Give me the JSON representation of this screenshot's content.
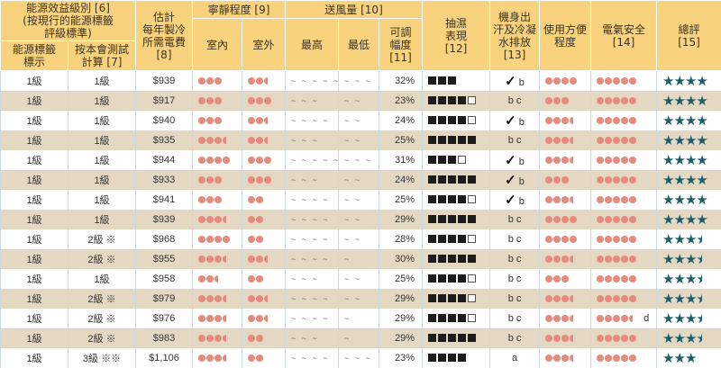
{
  "header": {
    "grade_group": "能源效益級別 [6]\n(按現行的能源標籤\n評級標準)",
    "label_grade": "能源標籤\n標示",
    "test_grade": "按本會測試\n計算 [7]",
    "cost": "估計\n每年製冷\n所需電費\n[8]",
    "quiet": "寧靜程度 [9]",
    "indoor": "室內",
    "outdoor": "室外",
    "airflow": "送風量 [10]",
    "max": "最高",
    "min": "最低",
    "range": "可調\n幅度\n[11]",
    "dehum": "抽濕\n表現\n[12]",
    "sweat": "機身出\n汗及冷凝\n水排放\n[13]",
    "ease": "使用方便\n程度",
    "elec": "電氣安全\n[14]",
    "overall": "總評\n[15]"
  },
  "colors": {
    "header": "#f8d27c",
    "alt_row": "#e4d8c3",
    "dot": "#e58a7c",
    "star": "#1e5e69"
  },
  "rows": [
    {
      "label": "1級",
      "test": "1級",
      "cost": "$939",
      "indoor": 3,
      "outdoor": 2.5,
      "max": 5,
      "min": 3,
      "range": "32%",
      "dehum": [
        3,
        3
      ],
      "check": true,
      "sweat": "b",
      "ease": 4,
      "elec": 5,
      "elec_note": "",
      "stars": 4
    },
    {
      "label": "1級",
      "test": "1級",
      "cost": "$917",
      "indoor": 3,
      "outdoor": 3,
      "max": 3,
      "min": 2,
      "range": "23%",
      "dehum": [
        4,
        5
      ],
      "check": false,
      "sweat": "b c",
      "ease": 3,
      "elec": 5,
      "elec_note": "",
      "stars": 4
    },
    {
      "label": "1級",
      "test": "1級",
      "cost": "$940",
      "indoor": 3,
      "outdoor": 2.5,
      "max": 4,
      "min": 2,
      "range": "24%",
      "dehum": [
        4,
        5
      ],
      "check": true,
      "sweat": "b",
      "ease": 3.5,
      "elec": 5,
      "elec_note": "",
      "stars": 4
    },
    {
      "label": "1級",
      "test": "1級",
      "cost": "$935",
      "indoor": 3.5,
      "outdoor": 2.5,
      "max": 3,
      "min": 2,
      "range": "25%",
      "dehum": [
        5,
        5
      ],
      "check": false,
      "sweat": "b c",
      "ease": 3.5,
      "elec": 5,
      "elec_note": "",
      "stars": 4
    },
    {
      "label": "1級",
      "test": "1級",
      "cost": "$944",
      "indoor": 4,
      "outdoor": 3,
      "max": 5,
      "min": 3,
      "range": "31%",
      "dehum": [
        3,
        4
      ],
      "check": true,
      "sweat": "b",
      "ease": 3.5,
      "elec": 5,
      "elec_note": "",
      "stars": 4
    },
    {
      "label": "1級",
      "test": "1級",
      "cost": "$933",
      "indoor": 3,
      "outdoor": 3,
      "max": 3,
      "min": 2,
      "range": "24%",
      "dehum": [
        5,
        5
      ],
      "check": true,
      "sweat": "b",
      "ease": 3,
      "elec": 5,
      "elec_note": "",
      "stars": 4
    },
    {
      "label": "1級",
      "test": "1級",
      "cost": "$941",
      "indoor": 3,
      "outdoor": 2,
      "max": 4,
      "min": 2,
      "range": "25%",
      "dehum": [
        4,
        5
      ],
      "check": true,
      "sweat": "b",
      "ease": 3.5,
      "elec": 5,
      "elec_note": "",
      "stars": 4
    },
    {
      "label": "1級",
      "test": "1級",
      "cost": "$939",
      "indoor": 3.5,
      "outdoor": 2,
      "max": 4,
      "min": 2,
      "range": "29%",
      "dehum": [
        5,
        5
      ],
      "check": false,
      "sweat": "b c",
      "ease": 4,
      "elec": 5,
      "elec_note": "",
      "stars": 4
    },
    {
      "label": "1級",
      "test": "2級 ※",
      "cost": "$968",
      "indoor": 4,
      "outdoor": 2,
      "max": 4,
      "min": 2,
      "range": "28%",
      "dehum": [
        4,
        5
      ],
      "check": false,
      "sweat": "b c",
      "ease": 4,
      "elec": 5,
      "elec_note": "",
      "stars": 3.5
    },
    {
      "label": "1級",
      "test": "2級 ※",
      "cost": "$955",
      "indoor": 3.5,
      "outdoor": 2.5,
      "max": 4,
      "min": 1,
      "range": "30%",
      "dehum": [
        5,
        5
      ],
      "check": false,
      "sweat": "b c",
      "ease": 3.5,
      "elec": 5,
      "elec_note": "",
      "stars": 3.5
    },
    {
      "label": "1級",
      "test": "1級",
      "cost": "$958",
      "indoor": 2.5,
      "outdoor": 2,
      "max": 3,
      "min": 2,
      "range": "25%",
      "dehum": [
        4,
        5
      ],
      "check": false,
      "sweat": "b c",
      "ease": 3,
      "elec": 5,
      "elec_note": "",
      "stars": 3.5
    },
    {
      "label": "1級",
      "test": "2級 ※",
      "cost": "$979",
      "indoor": 3.5,
      "outdoor": 2.5,
      "max": 4,
      "min": 2,
      "range": "29%",
      "dehum": [
        4,
        5
      ],
      "check": false,
      "sweat": "b c",
      "ease": 3.5,
      "elec": 5,
      "elec_note": "",
      "stars": 3.5
    },
    {
      "label": "1級",
      "test": "2級 ※",
      "cost": "$976",
      "indoor": 3.5,
      "outdoor": 2.5,
      "max": 4,
      "min": 1,
      "range": "29%",
      "dehum": [
        4,
        5
      ],
      "check": false,
      "sweat": "b c",
      "ease": 3.5,
      "elec": 4.5,
      "elec_note": "d",
      "stars": 3.5
    },
    {
      "label": "1級",
      "test": "2級 ※",
      "cost": "$983",
      "indoor": 3.5,
      "outdoor": 2,
      "max": 3,
      "min": 1,
      "range": "29%",
      "dehum": [
        5,
        5
      ],
      "check": false,
      "sweat": "b c",
      "ease": 3.5,
      "elec": 5,
      "elec_note": "",
      "stars": 3.5
    },
    {
      "label": "1級",
      "test": "3級 ※※",
      "cost": "$1,106",
      "indoor": 3.5,
      "outdoor": 2,
      "max": 4,
      "min": 3,
      "range": "23%",
      "dehum": [
        4,
        4
      ],
      "check": false,
      "sweat": "a",
      "ease": 3.5,
      "elec": 5,
      "elec_note": "",
      "stars": 3
    }
  ]
}
